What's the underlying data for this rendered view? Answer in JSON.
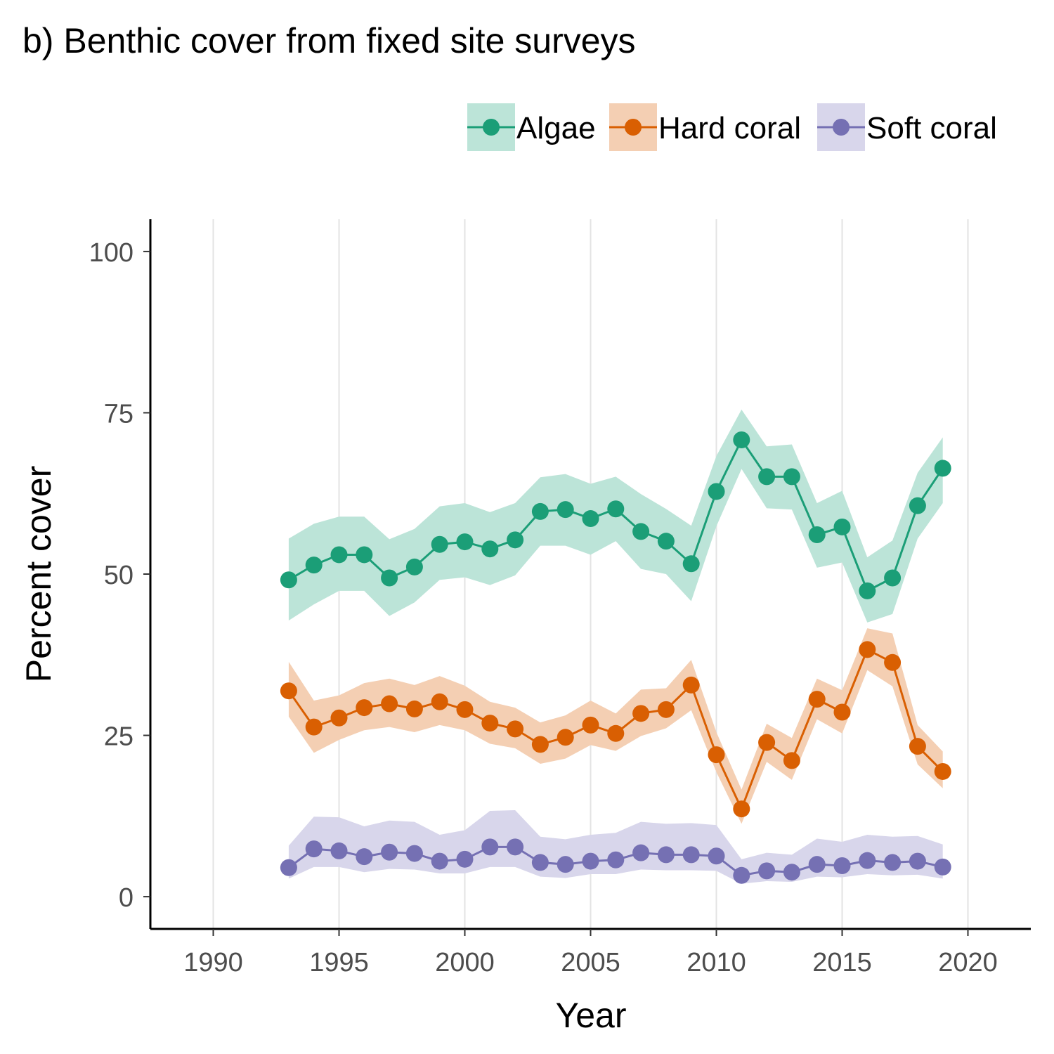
{
  "chart_data": {
    "type": "line",
    "title": "b) Benthic cover from fixed site surveys",
    "xlabel": "Year",
    "ylabel": "Percent cover",
    "xlim": [
      1987.5,
      2022.5
    ],
    "ylim": [
      -5,
      105
    ],
    "xticks": [
      1990,
      1995,
      2000,
      2005,
      2010,
      2015,
      2020
    ],
    "xtick_labels": [
      "1990",
      "1995",
      "2000",
      "2005",
      "2010",
      "2015",
      "2020"
    ],
    "yticks": [
      0,
      25,
      50,
      75,
      100
    ],
    "ytick_labels": [
      "0",
      "25",
      "50",
      "75",
      "100"
    ],
    "grid": "vertical major",
    "legend_position": "top-right",
    "x": [
      1993,
      1994,
      1995,
      1996,
      1997,
      1998,
      1999,
      2000,
      2001,
      2002,
      2003,
      2004,
      2005,
      2006,
      2007,
      2008,
      2009,
      2010,
      2011,
      2012,
      2013,
      2014,
      2015,
      2016,
      2017,
      2018,
      2019
    ],
    "series": [
      {
        "name": "Algae",
        "color": "#1b9e77",
        "band_color": "#bce4d8",
        "values": [
          49.1,
          51.4,
          53.0,
          53.0,
          49.4,
          51.1,
          54.6,
          55.0,
          53.9,
          55.3,
          59.7,
          60.0,
          58.6,
          60.1,
          56.6,
          55.1,
          51.6,
          62.8,
          70.8,
          65.1,
          65.1,
          56.1,
          57.3,
          47.4,
          49.4,
          60.6,
          66.4
        ],
        "lower": [
          42.8,
          45.3,
          47.4,
          47.4,
          43.5,
          45.6,
          49.1,
          49.5,
          48.3,
          49.8,
          54.4,
          54.4,
          53.0,
          55.1,
          50.8,
          50.0,
          45.8,
          57.4,
          66.3,
          60.2,
          60.0,
          51.0,
          51.8,
          42.5,
          43.8,
          55.5,
          61.0
        ],
        "upper": [
          55.5,
          57.8,
          58.9,
          58.9,
          55.4,
          57.0,
          60.5,
          61.0,
          59.6,
          61.0,
          65.0,
          65.5,
          64.0,
          65.1,
          62.4,
          60.1,
          57.5,
          68.3,
          75.5,
          69.8,
          70.1,
          61.0,
          62.9,
          52.6,
          55.2,
          65.7,
          71.2
        ]
      },
      {
        "name": "Hard coral",
        "color": "#d95f02",
        "band_color": "#f4cfb3",
        "values": [
          31.9,
          26.3,
          27.7,
          29.3,
          29.9,
          29.1,
          30.2,
          29.0,
          26.9,
          26.0,
          23.6,
          24.7,
          26.6,
          25.3,
          28.4,
          29.0,
          32.8,
          22.0,
          13.6,
          23.9,
          21.1,
          30.6,
          28.6,
          38.3,
          36.3,
          23.3,
          19.4
        ],
        "lower": [
          27.9,
          22.3,
          24.3,
          25.8,
          26.3,
          25.5,
          26.6,
          25.8,
          23.7,
          23.0,
          20.6,
          21.4,
          23.5,
          22.6,
          24.9,
          26.1,
          28.9,
          19.3,
          11.3,
          20.9,
          18.1,
          27.5,
          25.3,
          35.1,
          32.6,
          20.5,
          16.8
        ],
        "upper": [
          36.4,
          30.4,
          31.2,
          33.1,
          33.8,
          32.8,
          34.2,
          32.7,
          30.2,
          29.3,
          27.0,
          28.1,
          30.4,
          28.4,
          32.1,
          32.3,
          36.7,
          25.5,
          16.6,
          26.8,
          24.6,
          33.8,
          32.0,
          41.6,
          40.8,
          26.6,
          22.5
        ]
      },
      {
        "name": "Soft coral",
        "color": "#7570b3",
        "band_color": "#d8d6eb",
        "values": [
          4.5,
          7.4,
          7.1,
          6.2,
          6.9,
          6.7,
          5.5,
          5.8,
          7.7,
          7.7,
          5.3,
          5.0,
          5.5,
          5.7,
          6.8,
          6.5,
          6.5,
          6.3,
          3.3,
          4.0,
          3.8,
          5.0,
          4.8,
          5.6,
          5.3,
          5.5,
          4.6
        ],
        "lower": [
          2.8,
          4.6,
          4.6,
          3.8,
          4.3,
          4.2,
          3.6,
          3.6,
          4.6,
          4.6,
          3.1,
          2.9,
          3.5,
          3.5,
          4.2,
          4.1,
          4.1,
          4.0,
          2.0,
          2.4,
          2.3,
          3.1,
          3.0,
          3.5,
          3.3,
          3.4,
          2.8
        ],
        "upper": [
          7.9,
          12.4,
          12.3,
          10.9,
          11.8,
          11.6,
          9.6,
          10.3,
          13.3,
          13.4,
          9.3,
          8.9,
          9.6,
          9.9,
          11.6,
          11.3,
          11.4,
          11.1,
          5.8,
          6.8,
          6.5,
          9.0,
          8.5,
          9.6,
          9.3,
          9.4,
          8.1
        ]
      }
    ]
  }
}
